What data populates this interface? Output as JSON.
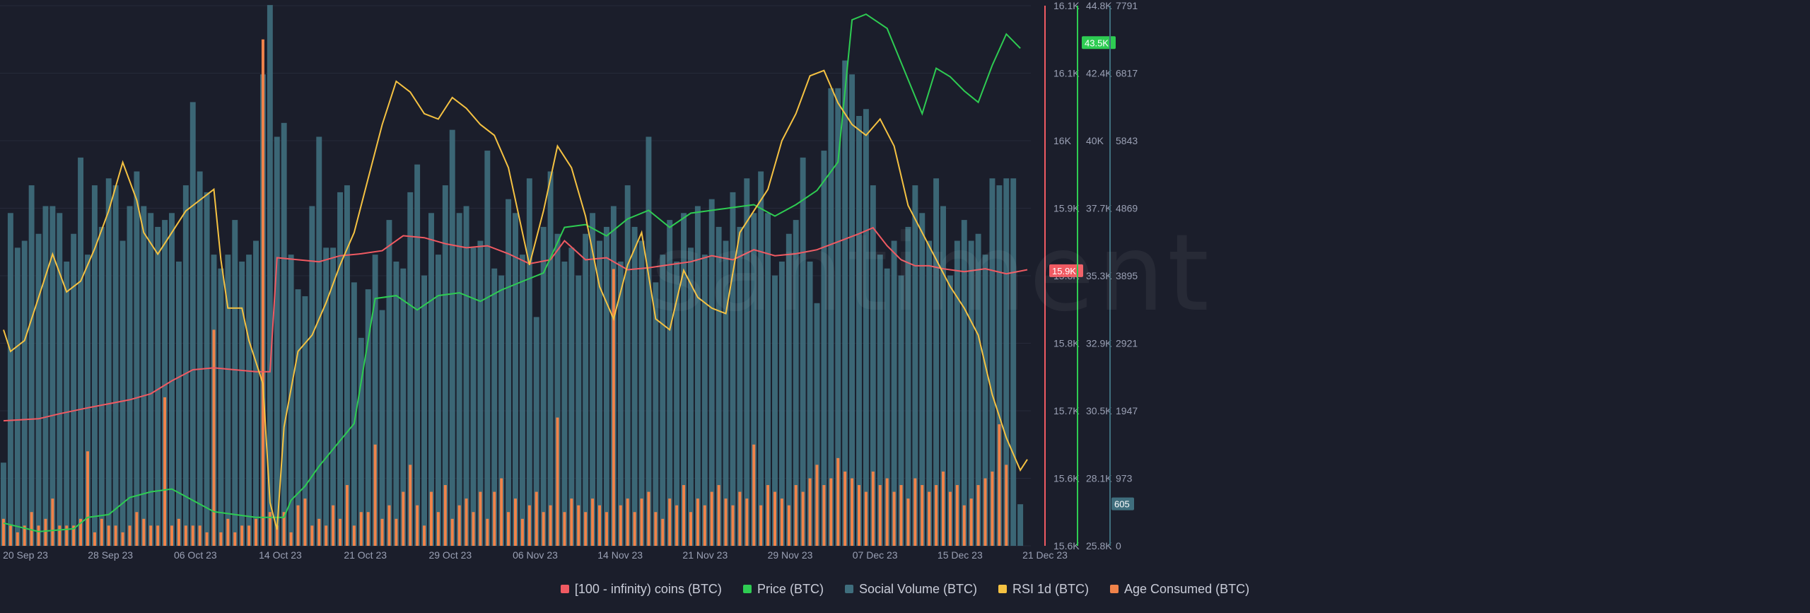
{
  "watermark": "santiment",
  "colors": {
    "background": "#1b1e2b",
    "grid": "#262a3a",
    "whale": "#f05a62",
    "price": "#2ecc52",
    "social": "#3f6e7d",
    "rsi": "#f5c242",
    "age": "#f0834a",
    "axis_text": "#9aa0b4"
  },
  "chart_data": {
    "type": "bar",
    "x_ticks": [
      "20 Sep 23",
      "28 Sep 23",
      "06 Oct 23",
      "14 Oct 23",
      "21 Oct 23",
      "29 Oct 23",
      "06 Nov 23",
      "14 Nov 23",
      "21 Nov 23",
      "29 Nov 23",
      "07 Dec 23",
      "15 Dec 23",
      "21 Dec 23"
    ],
    "axes": {
      "whale": {
        "ticks": [
          "16.1K",
          "16.1K",
          "16K",
          "15.9K",
          "15.8K",
          "15.8K",
          "15.7K",
          "15.6K",
          "15.6K"
        ],
        "last_value": "15.9K"
      },
      "price": {
        "ticks": [
          "44.8K",
          "42.4K",
          "40K",
          "37.7K",
          "35.3K",
          "32.9K",
          "30.5K",
          "28.1K",
          "25.8K"
        ],
        "last_value": "43.5K"
      },
      "social": {
        "ticks": [
          "7791",
          "6817",
          "5843",
          "4869",
          "3895",
          "2921",
          "1947",
          "973",
          "0"
        ],
        "last_value": "605"
      }
    },
    "series": [
      {
        "name": "[100 - infinity) coins (BTC)",
        "type": "line",
        "color_key": "whale",
        "points": [
          [
            0,
            15705
          ],
          [
            5,
            15707
          ],
          [
            8,
            15712
          ],
          [
            12,
            15718
          ],
          [
            15,
            15722
          ],
          [
            18,
            15726
          ],
          [
            21,
            15732
          ],
          [
            24,
            15745
          ],
          [
            27,
            15756
          ],
          [
            30,
            15758
          ],
          [
            33,
            15756
          ],
          [
            36,
            15754
          ],
          [
            38,
            15754
          ],
          [
            39,
            15868
          ],
          [
            42,
            15866
          ],
          [
            45,
            15864
          ],
          [
            48,
            15870
          ],
          [
            51,
            15872
          ],
          [
            54,
            15875
          ],
          [
            57,
            15890
          ],
          [
            60,
            15888
          ],
          [
            63,
            15882
          ],
          [
            66,
            15878
          ],
          [
            69,
            15880
          ],
          [
            72,
            15872
          ],
          [
            75,
            15862
          ],
          [
            78,
            15866
          ],
          [
            80,
            15885
          ],
          [
            83,
            15866
          ],
          [
            86,
            15868
          ],
          [
            89,
            15856
          ],
          [
            92,
            15858
          ],
          [
            95,
            15861
          ],
          [
            98,
            15864
          ],
          [
            101,
            15870
          ],
          [
            104,
            15866
          ],
          [
            107,
            15876
          ],
          [
            110,
            15870
          ],
          [
            113,
            15872
          ],
          [
            116,
            15876
          ],
          [
            119,
            15884
          ],
          [
            122,
            15892
          ],
          [
            124,
            15898
          ],
          [
            126,
            15880
          ],
          [
            128,
            15866
          ],
          [
            130,
            15860
          ],
          [
            132,
            15860
          ],
          [
            134,
            15857
          ],
          [
            137,
            15854
          ],
          [
            140,
            15857
          ],
          [
            143,
            15852
          ],
          [
            146,
            15856
          ]
        ]
      },
      {
        "name": "Price (BTC)",
        "type": "line",
        "color_key": "price",
        "points": [
          [
            0,
            26600
          ],
          [
            5,
            26300
          ],
          [
            10,
            26400
          ],
          [
            12,
            26800
          ],
          [
            15,
            26900
          ],
          [
            18,
            27500
          ],
          [
            21,
            27700
          ],
          [
            24,
            27800
          ],
          [
            27,
            27400
          ],
          [
            30,
            27000
          ],
          [
            33,
            26900
          ],
          [
            36,
            26800
          ],
          [
            39,
            26800
          ],
          [
            40,
            26800
          ],
          [
            41,
            27400
          ],
          [
            43,
            27900
          ],
          [
            45,
            28600
          ],
          [
            47,
            29200
          ],
          [
            50,
            30100
          ],
          [
            53,
            34500
          ],
          [
            56,
            34600
          ],
          [
            59,
            34100
          ],
          [
            62,
            34600
          ],
          [
            65,
            34700
          ],
          [
            68,
            34400
          ],
          [
            71,
            34800
          ],
          [
            74,
            35100
          ],
          [
            77,
            35400
          ],
          [
            80,
            37000
          ],
          [
            83,
            37100
          ],
          [
            86,
            36700
          ],
          [
            89,
            37300
          ],
          [
            92,
            37600
          ],
          [
            95,
            37000
          ],
          [
            98,
            37500
          ],
          [
            101,
            37600
          ],
          [
            104,
            37700
          ],
          [
            107,
            37800
          ],
          [
            110,
            37400
          ],
          [
            113,
            37800
          ],
          [
            116,
            38300
          ],
          [
            119,
            39300
          ],
          [
            121,
            44300
          ],
          [
            123,
            44500
          ],
          [
            126,
            44000
          ],
          [
            129,
            42200
          ],
          [
            131,
            41000
          ],
          [
            133,
            42600
          ],
          [
            135,
            42300
          ],
          [
            137,
            41800
          ],
          [
            139,
            41400
          ],
          [
            141,
            42700
          ],
          [
            143,
            43800
          ],
          [
            145,
            43300
          ]
        ]
      },
      {
        "name": "Social Volume (BTC)",
        "type": "bar",
        "color_key": "social",
        "values": [
          1200,
          4800,
          4300,
          4400,
          5200,
          4500,
          4900,
          4900,
          4800,
          4100,
          4500,
          5600,
          4200,
          5200,
          4600,
          5300,
          5200,
          4400,
          4900,
          5400,
          4900,
          4800,
          4600,
          4700,
          4800,
          4100,
          5200,
          6400,
          5400,
          5100,
          4200,
          4000,
          4200,
          4700,
          4100,
          4200,
          4400,
          6800,
          7800,
          5900,
          6100,
          4200,
          3700,
          3600,
          4900,
          5900,
          4300,
          4300,
          5100,
          5200,
          3800,
          3000,
          3700,
          4200,
          3400,
          4700,
          4100,
          4000,
          5100,
          5500,
          3900,
          4800,
          4200,
          5200,
          6000,
          4800,
          4900,
          4300,
          4400,
          5700,
          4000,
          3900,
          5000,
          4800,
          4200,
          5300,
          3300,
          4600,
          5400,
          4500,
          4100,
          4300,
          3900,
          4500,
          4800,
          4400,
          4600,
          4900,
          4100,
          5200,
          4600,
          4400,
          5900,
          3800,
          4200,
          4700,
          4100,
          4800,
          4300,
          4900,
          4200,
          5000,
          4600,
          4400,
          5100,
          4600,
          5300,
          4800,
          5400,
          4800,
          3900,
          4100,
          4500,
          4700,
          5600,
          4100,
          3500,
          5700,
          6600,
          6600,
          7000,
          6800,
          6200,
          6300,
          5200,
          4200,
          4000,
          4400,
          3900,
          4600,
          5200,
          4800,
          4400,
          5300,
          4900,
          3900,
          4400,
          4700,
          4400,
          4500,
          4200,
          5300,
          5200,
          5300,
          5300,
          600
        ]
      },
      {
        "name": "RSI 1d (BTC)",
        "type": "line",
        "color_key": "rsi",
        "points": [
          [
            0,
            40
          ],
          [
            1,
            36
          ],
          [
            3,
            38
          ],
          [
            5,
            46
          ],
          [
            7,
            54
          ],
          [
            9,
            47
          ],
          [
            11,
            49
          ],
          [
            13,
            55
          ],
          [
            15,
            62
          ],
          [
            17,
            71
          ],
          [
            19,
            64
          ],
          [
            20,
            58
          ],
          [
            22,
            54
          ],
          [
            24,
            58
          ],
          [
            26,
            62
          ],
          [
            28,
            64
          ],
          [
            30,
            66
          ],
          [
            31,
            53
          ],
          [
            32,
            44
          ],
          [
            34,
            44
          ],
          [
            35,
            38
          ],
          [
            37,
            30
          ],
          [
            38,
            8
          ],
          [
            39,
            3
          ],
          [
            40,
            22
          ],
          [
            42,
            36
          ],
          [
            44,
            39
          ],
          [
            46,
            45
          ],
          [
            48,
            52
          ],
          [
            50,
            58
          ],
          [
            52,
            68
          ],
          [
            54,
            78
          ],
          [
            56,
            86
          ],
          [
            58,
            84
          ],
          [
            60,
            80
          ],
          [
            62,
            79
          ],
          [
            64,
            83
          ],
          [
            66,
            81
          ],
          [
            68,
            78
          ],
          [
            70,
            76
          ],
          [
            72,
            70
          ],
          [
            75,
            52
          ],
          [
            77,
            62
          ],
          [
            79,
            74
          ],
          [
            81,
            70
          ],
          [
            83,
            61
          ],
          [
            85,
            48
          ],
          [
            87,
            42
          ],
          [
            89,
            52
          ],
          [
            91,
            58
          ],
          [
            93,
            42
          ],
          [
            95,
            40
          ],
          [
            97,
            51
          ],
          [
            99,
            46
          ],
          [
            101,
            44
          ],
          [
            103,
            43
          ],
          [
            105,
            58
          ],
          [
            107,
            62
          ],
          [
            109,
            66
          ],
          [
            111,
            75
          ],
          [
            113,
            80
          ],
          [
            115,
            87
          ],
          [
            117,
            88
          ],
          [
            119,
            82
          ],
          [
            121,
            78
          ],
          [
            123,
            76
          ],
          [
            125,
            79
          ],
          [
            127,
            74
          ],
          [
            129,
            63
          ],
          [
            131,
            58
          ],
          [
            133,
            53
          ],
          [
            135,
            48
          ],
          [
            137,
            44
          ],
          [
            139,
            39
          ],
          [
            141,
            28
          ],
          [
            143,
            20
          ],
          [
            145,
            14
          ],
          [
            146,
            16
          ]
        ]
      },
      {
        "name": "Age Consumed (BTC)",
        "type": "bar",
        "color_key": "age",
        "values": [
          400,
          300,
          200,
          300,
          500,
          300,
          400,
          700,
          300,
          300,
          300,
          400,
          1400,
          200,
          400,
          300,
          300,
          200,
          300,
          500,
          400,
          300,
          300,
          2200,
          300,
          400,
          300,
          300,
          300,
          200,
          3200,
          200,
          400,
          200,
          300,
          300,
          400,
          7500,
          500,
          300,
          500,
          200,
          600,
          700,
          300,
          400,
          300,
          600,
          400,
          900,
          300,
          500,
          500,
          1500,
          400,
          600,
          400,
          800,
          1200,
          600,
          300,
          800,
          500,
          900,
          400,
          600,
          700,
          500,
          800,
          400,
          800,
          1000,
          500,
          700,
          400,
          600,
          800,
          500,
          600,
          1900,
          500,
          700,
          600,
          500,
          700,
          600,
          500,
          4100,
          600,
          700,
          500,
          700,
          800,
          500,
          400,
          700,
          600,
          900,
          500,
          700,
          600,
          800,
          900,
          700,
          600,
          800,
          700,
          1500,
          600,
          900,
          800,
          700,
          600,
          900,
          800,
          1000,
          1200,
          900,
          1000,
          1300,
          1100,
          1000,
          900,
          800,
          1100,
          900,
          1000,
          800,
          900,
          700,
          1000,
          900,
          800,
          900,
          1100,
          800,
          900,
          600,
          700,
          900,
          1000,
          1100,
          1800,
          1200
        ]
      }
    ],
    "legend": [
      "[100 - infinity) coins (BTC)",
      "Price (BTC)",
      "Social Volume (BTC)",
      "RSI 1d (BTC)",
      "Age Consumed (BTC)"
    ]
  }
}
